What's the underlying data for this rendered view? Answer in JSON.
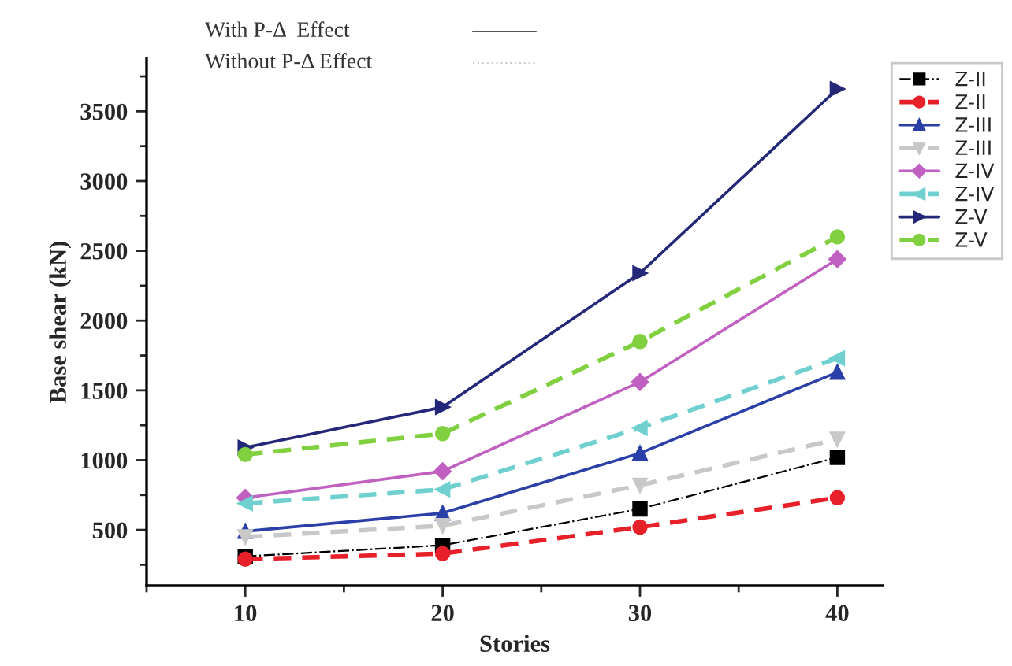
{
  "chart_data": {
    "type": "line",
    "xlabel": "Stories",
    "ylabel": "Base shear (kN)",
    "annotations": [
      "With P-Δ  Effect",
      "Without P-Δ Effect"
    ],
    "x": [
      10,
      20,
      30,
      40
    ],
    "xlim": [
      5,
      42.3
    ],
    "xticks": [
      10,
      20,
      30,
      40
    ],
    "ylim": [
      100,
      3880
    ],
    "yticks": [
      500,
      1000,
      1500,
      2000,
      2500,
      3000,
      3500
    ],
    "grid": false,
    "legend": "top right",
    "series": [
      {
        "name": "Z-II",
        "color": "#000000",
        "marker": "square",
        "line_style": "dashdot",
        "values": [
          310,
          390,
          650,
          1020
        ]
      },
      {
        "name": "Z-II",
        "color": "#e8202a",
        "marker": "circle",
        "line_style": "dashed",
        "values": [
          290,
          330,
          520,
          730
        ]
      },
      {
        "name": "Z-III",
        "color": "#2b3fa8",
        "marker": "triangle",
        "line_style": "solid",
        "values": [
          490,
          620,
          1050,
          1630
        ]
      },
      {
        "name": "Z-III",
        "color": "#c8c8c8",
        "marker": "triangle_down",
        "line_style": "dashed",
        "values": [
          450,
          530,
          820,
          1150
        ]
      },
      {
        "name": "Z-IV",
        "color": "#c060c0",
        "marker": "diamond",
        "line_style": "solid",
        "values": [
          730,
          920,
          1560,
          2440
        ]
      },
      {
        "name": "Z-IV",
        "color": "#70d0d0",
        "marker": "triangle_left",
        "line_style": "dashed",
        "values": [
          690,
          790,
          1230,
          1730
        ]
      },
      {
        "name": "Z-V",
        "color": "#252878",
        "marker": "triangle_right",
        "line_style": "solid",
        "values": [
          1090,
          1380,
          2340,
          3660
        ]
      },
      {
        "name": "Z-V",
        "color": "#80d040",
        "marker": "circle",
        "line_style": "dashed",
        "values": [
          1040,
          1190,
          1850,
          2600
        ]
      }
    ]
  }
}
